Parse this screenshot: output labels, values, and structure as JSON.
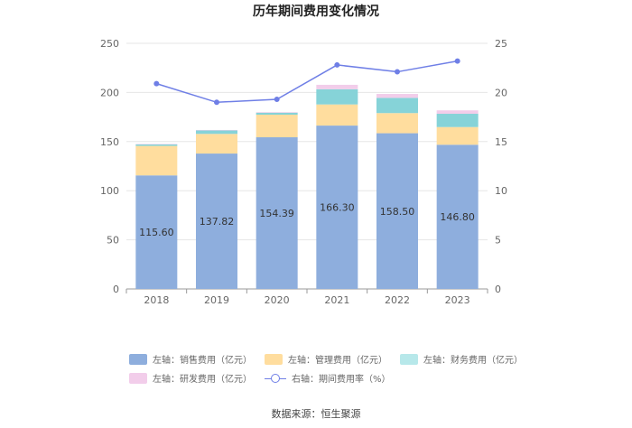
{
  "chart_data": {
    "type": "bar",
    "title": "历年期间费用变化情况",
    "categories": [
      "2018",
      "2019",
      "2020",
      "2021",
      "2022",
      "2023"
    ],
    "series": [
      {
        "name": "左轴：销售费用（亿元）",
        "axis": "left",
        "color": "#8eaedd",
        "values": [
          115.6,
          137.82,
          154.39,
          166.3,
          158.5,
          146.8
        ]
      },
      {
        "name": "左轴：管理费用（亿元）",
        "axis": "left",
        "color": "#ffdd9e",
        "values": [
          30.0,
          20.0,
          23.0,
          21.5,
          20.5,
          18.0
        ]
      },
      {
        "name": "左轴：财务费用（亿元）",
        "axis": "left",
        "color": "#86d3d8",
        "values": [
          1.5,
          3.5,
          2.0,
          15.5,
          15.5,
          13.5
        ]
      },
      {
        "name": "左轴：研发费用（亿元）",
        "axis": "left",
        "color": "#f2cdea",
        "values": [
          0.5,
          0.5,
          0.6,
          4.5,
          4.0,
          3.5
        ]
      },
      {
        "name": "右轴：期间费用率（%）",
        "axis": "right",
        "type": "line",
        "color": "#6f7fe6",
        "values": [
          20.9,
          19.0,
          19.3,
          22.8,
          22.1,
          23.2
        ]
      }
    ],
    "data_labels": [
      "115.60",
      "137.82",
      "154.39",
      "166.30",
      "158.50",
      "146.80"
    ],
    "left_axis": {
      "min": 0,
      "max": 250,
      "ticks": [
        "0",
        "50",
        "100",
        "150",
        "200",
        "250"
      ]
    },
    "right_axis": {
      "min": 0,
      "max": 25,
      "ticks": [
        "0",
        "5",
        "10",
        "15",
        "20",
        "25"
      ]
    },
    "legend_position": "bottom",
    "grid": true
  },
  "legend": {
    "row1": [
      "左轴：销售费用（亿元）",
      "左轴：管理费用（亿元）",
      "左轴：财务费用（亿元）"
    ],
    "row2": [
      "左轴：研发费用（亿元）",
      "右轴：期间费用率（%）"
    ]
  },
  "source": "数据来源：恒生聚源"
}
